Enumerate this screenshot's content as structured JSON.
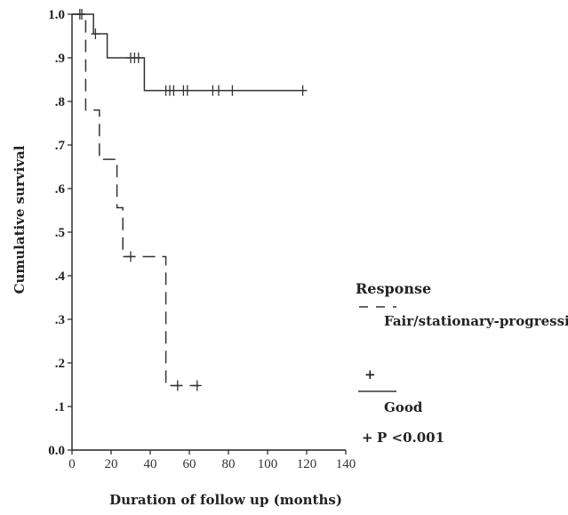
{
  "chart_data": {
    "type": "line",
    "title": "",
    "xlabel": "Duration of follow up (months)",
    "ylabel": "Cumulative survival",
    "xlim": [
      0,
      140
    ],
    "ylim": [
      0,
      1.0
    ],
    "x_ticks": [
      0,
      20,
      40,
      60,
      80,
      100,
      120,
      140
    ],
    "x_tick_labels": [
      "0",
      "20",
      "40",
      "60",
      "80",
      "100",
      "120",
      "140"
    ],
    "y_ticks": [
      0,
      0.1,
      0.2,
      0.3,
      0.4,
      0.5,
      0.6,
      0.7,
      0.8,
      0.9,
      1.0
    ],
    "y_tick_labels": [
      "0.0",
      ".1",
      ".2",
      ".3",
      ".4",
      ".5",
      ".6",
      ".7",
      ".8",
      ".9",
      "1.0"
    ],
    "grid": false,
    "step": true,
    "legend": {
      "title": "Response",
      "placement": "right",
      "censor_symbol": "+"
    },
    "series": [
      {
        "name": "Fair/stationary-progressive disease",
        "line_style": "dashed",
        "color": "#333333",
        "steps": [
          [
            0,
            1.0
          ],
          [
            7,
            0.78
          ],
          [
            14,
            0.667
          ],
          [
            23,
            0.556
          ],
          [
            26,
            0.444
          ],
          [
            48,
            0.148
          ]
        ],
        "end_x": 65,
        "censored": [
          [
            5,
            1.0
          ],
          [
            30,
            0.444
          ],
          [
            54,
            0.148
          ],
          [
            64,
            0.148
          ]
        ]
      },
      {
        "name": "Good",
        "line_style": "solid",
        "color": "#333333",
        "steps": [
          [
            0,
            1.0
          ],
          [
            11,
            0.955
          ],
          [
            18,
            0.9
          ],
          [
            37,
            0.825
          ]
        ],
        "end_x": 119,
        "censored": [
          [
            4,
            1.0
          ],
          [
            12,
            0.955
          ],
          [
            30,
            0.9
          ],
          [
            32,
            0.9
          ],
          [
            34,
            0.9
          ],
          [
            48,
            0.825
          ],
          [
            50,
            0.825
          ],
          [
            52,
            0.825
          ],
          [
            57,
            0.825
          ],
          [
            59,
            0.825
          ],
          [
            72,
            0.825
          ],
          [
            75,
            0.825
          ],
          [
            82,
            0.825
          ],
          [
            118,
            0.825
          ]
        ]
      }
    ],
    "annotations": [
      "P <0.001"
    ]
  }
}
